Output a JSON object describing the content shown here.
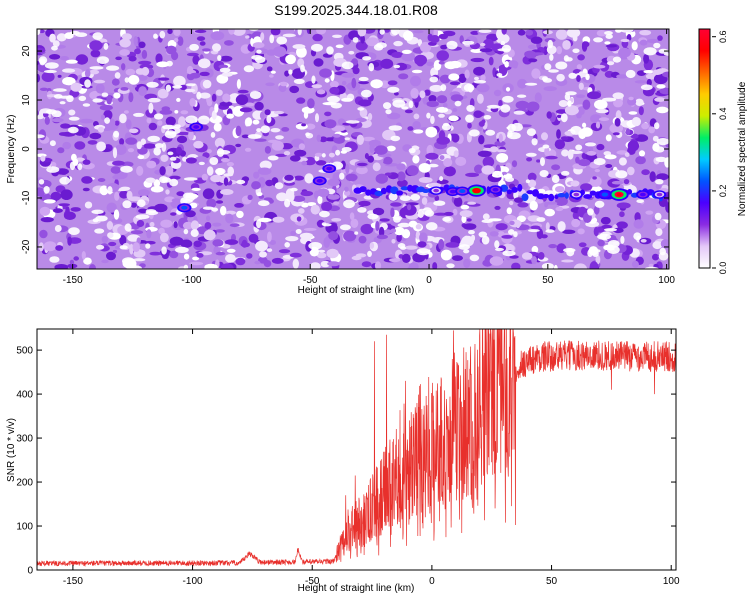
{
  "chart_data": [
    {
      "type": "heatmap",
      "title": "S199.2025.344.18.01.R08",
      "xlabel": "Height of straight line (km)",
      "ylabel": "Frequency (Hz)",
      "xlim": [
        -165,
        101
      ],
      "ylim": [
        -24.5,
        24.5
      ],
      "xticks": [
        -150,
        -100,
        -50,
        0,
        50,
        100
      ],
      "yticks": [
        20,
        10,
        0,
        -10,
        -20
      ],
      "colorbar": {
        "label": "Normalized spectral amplitude",
        "range": [
          0,
          0.62
        ],
        "ticks": [
          "0.0",
          "0.2",
          "0.4",
          "0.6"
        ],
        "tick_values": [
          0,
          0.2,
          0.4,
          0.6
        ],
        "colors": [
          "#ffffff",
          "#e4c8f8",
          "#8a2be2",
          "#4b00ff",
          "#0055ff",
          "#00ccff",
          "#00ee66",
          "#ccee00",
          "#ffcc00",
          "#ff6600",
          "#ff0000",
          "#ff0033"
        ]
      },
      "background_color": "#9b4de0",
      "peaks": [
        {
          "x": -103,
          "y": -12,
          "amp": 0.2
        },
        {
          "x": -98,
          "y": 4.5,
          "amp": 0.15
        },
        {
          "x": -46,
          "y": -6.5,
          "amp": 0.17
        },
        {
          "x": -42,
          "y": -4,
          "amp": 0.15
        },
        {
          "x": 3,
          "y": -8.5,
          "amp": 0.12
        },
        {
          "x": 10,
          "y": -8.7,
          "amp": 0.16
        },
        {
          "x": 14,
          "y": -8.6,
          "amp": 0.2
        },
        {
          "x": 20,
          "y": -8.5,
          "amp": 0.55
        },
        {
          "x": 28,
          "y": -8.3,
          "amp": 0.15
        },
        {
          "x": 62,
          "y": -9.3,
          "amp": 0.12
        },
        {
          "x": 74,
          "y": -9.3,
          "amp": 0.25
        },
        {
          "x": 80,
          "y": -9.3,
          "amp": 0.6
        },
        {
          "x": 90,
          "y": -9.3,
          "amp": 0.15
        },
        {
          "x": 97,
          "y": -9.3,
          "amp": 0.12
        }
      ]
    },
    {
      "type": "line",
      "xlabel": "Height of straight line (km)",
      "ylabel": "SNR (10 * v/v)",
      "xlim": [
        -165,
        102
      ],
      "ylim": [
        0,
        548
      ],
      "xticks": [
        -150,
        -100,
        -50,
        0,
        50,
        100
      ],
      "yticks": [
        0,
        100,
        200,
        300,
        400,
        500
      ],
      "color": "#e8302c",
      "envelope": [
        {
          "x": -165,
          "y": 15
        },
        {
          "x": -80,
          "y": 16
        },
        {
          "x": -76,
          "y": 38
        },
        {
          "x": -72,
          "y": 18
        },
        {
          "x": -57,
          "y": 18
        },
        {
          "x": -56,
          "y": 48
        },
        {
          "x": -54,
          "y": 18
        },
        {
          "x": -41,
          "y": 20
        },
        {
          "x": -35,
          "y": 90
        },
        {
          "x": -28,
          "y": 120
        },
        {
          "x": -22,
          "y": 160
        },
        {
          "x": -17,
          "y": 200
        },
        {
          "x": -12,
          "y": 250
        },
        {
          "x": -6,
          "y": 270
        },
        {
          "x": 0,
          "y": 290
        },
        {
          "x": 5,
          "y": 300
        },
        {
          "x": 12,
          "y": 330
        },
        {
          "x": 18,
          "y": 340
        },
        {
          "x": 22,
          "y": 390
        },
        {
          "x": 26,
          "y": 415
        },
        {
          "x": 32,
          "y": 450
        },
        {
          "x": 38,
          "y": 470
        },
        {
          "x": 45,
          "y": 485
        },
        {
          "x": 60,
          "y": 488
        },
        {
          "x": 102,
          "y": 485
        }
      ],
      "spikes": [
        {
          "x": -37,
          "y": 90
        },
        {
          "x": -36,
          "y": 170
        },
        {
          "x": -32,
          "y": 215
        },
        {
          "x": -27,
          "y": 160
        },
        {
          "x": -24,
          "y": 520
        },
        {
          "x": -19,
          "y": 535
        },
        {
          "x": -17,
          "y": 80
        },
        {
          "x": -11,
          "y": 430
        },
        {
          "x": -7,
          "y": 370
        },
        {
          "x": -1,
          "y": 320
        },
        {
          "x": 1,
          "y": 90
        },
        {
          "x": 9,
          "y": 545
        },
        {
          "x": 10,
          "y": 440
        },
        {
          "x": 13,
          "y": 160
        },
        {
          "x": 26,
          "y": 460
        },
        {
          "x": 31,
          "y": 480
        },
        {
          "x": 50,
          "y": 510
        },
        {
          "x": 65,
          "y": 505
        },
        {
          "x": 75,
          "y": 410
        },
        {
          "x": 93,
          "y": 400
        }
      ]
    }
  ]
}
